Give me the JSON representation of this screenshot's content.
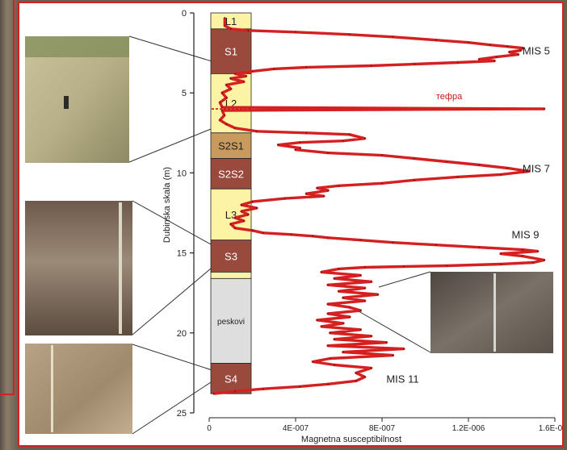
{
  "chart_data": {
    "type": "line",
    "ylabel": "Dubinska skala (m)",
    "xlabel": "Magnetna susceptibilnost",
    "ylim": [
      0,
      25
    ],
    "xlim": [
      0,
      1.6e-06
    ],
    "y_ticks": [
      "0",
      "5",
      "10",
      "15",
      "20",
      "25"
    ],
    "x_ticks": [
      "0",
      "4E-007",
      "8E-007",
      "1.2E-006",
      "1.6E-006"
    ],
    "stratigraphy": [
      {
        "label": "L1",
        "top": 0,
        "bottom": 1.0,
        "color": "#fdf3a4",
        "text_color": "#222222"
      },
      {
        "label": "S1",
        "top": 1.0,
        "bottom": 3.8,
        "color": "#9a4a3c",
        "text_color": "#ffffff"
      },
      {
        "label": "L2",
        "top": 3.8,
        "bottom": 7.5,
        "color": "#fdf3a4",
        "text_color": "#222222"
      },
      {
        "label": "S2S1",
        "top": 7.5,
        "bottom": 9.1,
        "color": "#c89a5e",
        "text_color": "#222222"
      },
      {
        "label": "S2S2",
        "top": 9.1,
        "bottom": 11.0,
        "color": "#9a4a3c",
        "text_color": "#ffffff"
      },
      {
        "label": "L3",
        "top": 11.0,
        "bottom": 14.2,
        "color": "#fdf3a4",
        "text_color": "#222222"
      },
      {
        "label": "S3",
        "top": 14.2,
        "bottom": 16.2,
        "color": "#9a4a3c",
        "text_color": "#ffffff"
      },
      {
        "label": "",
        "top": 16.2,
        "bottom": 16.6,
        "color": "#fdf3a4",
        "text_color": "#222222"
      },
      {
        "label": "peskovi",
        "top": 16.6,
        "bottom": 21.9,
        "color": "#dedede",
        "text_color": "#222222"
      },
      {
        "label": "S4",
        "top": 21.9,
        "bottom": 23.8,
        "color": "#9a4a3c",
        "text_color": "#ffffff"
      }
    ],
    "tephra_depth": 6.0,
    "series": [
      {
        "color": "#d42020",
        "points": [
          [
            7.2e-08,
            0.3
          ],
          [
            7.2e-08,
            0.8
          ],
          [
            1e-07,
            1.0
          ],
          [
            1.8e-07,
            1.1
          ],
          [
            4e-07,
            1.2
          ],
          [
            6.5e-07,
            1.35
          ],
          [
            8.5e-07,
            1.5
          ],
          [
            1.05e-06,
            1.7
          ],
          [
            1.2e-06,
            1.85
          ],
          [
            1.3e-06,
            2.0
          ],
          [
            1.38e-06,
            2.1
          ],
          [
            1.45e-06,
            2.2
          ],
          [
            1.44e-06,
            2.35
          ],
          [
            1.39e-06,
            2.45
          ],
          [
            1.43e-06,
            2.6
          ],
          [
            1.33e-06,
            2.75
          ],
          [
            1.25e-06,
            2.9
          ],
          [
            1.32e-06,
            3.0
          ],
          [
            1.15e-06,
            3.1
          ],
          [
            9.5e-07,
            3.2
          ],
          [
            7.5e-07,
            3.3
          ],
          [
            4.5e-07,
            3.4
          ],
          [
            3e-07,
            3.5
          ],
          [
            2e-07,
            3.65
          ],
          [
            1.2e-07,
            3.8
          ],
          [
            1.7e-07,
            3.95
          ],
          [
            1e-07,
            4.1
          ],
          [
            1.6e-07,
            4.3
          ],
          [
            8e-08,
            4.5
          ],
          [
            1e-07,
            4.75
          ],
          [
            6e-08,
            5.0
          ],
          [
            8e-08,
            5.3
          ],
          [
            5e-08,
            5.6
          ],
          [
            6e-08,
            5.9
          ],
          [
            1.55e-06,
            6.0
          ],
          [
            6e-08,
            6.1
          ],
          [
            7e-08,
            6.4
          ],
          [
            5e-08,
            6.7
          ],
          [
            8e-08,
            6.95
          ],
          [
            1.2e-07,
            7.2
          ],
          [
            2.2e-07,
            7.4
          ],
          [
            4.5e-07,
            7.5
          ],
          [
            6.5e-07,
            7.6
          ],
          [
            7.2e-07,
            7.85
          ],
          [
            6.2e-07,
            8.0
          ],
          [
            4.2e-07,
            8.1
          ],
          [
            3.2e-07,
            8.25
          ],
          [
            4.2e-07,
            8.45
          ],
          [
            4e-07,
            8.55
          ],
          [
            5.5e-07,
            8.75
          ],
          [
            8e-07,
            8.9
          ],
          [
            9.5e-07,
            9.1
          ],
          [
            1.1e-06,
            9.3
          ],
          [
            1.25e-06,
            9.5
          ],
          [
            1.38e-06,
            9.7
          ],
          [
            1.48e-06,
            9.9
          ],
          [
            1.35e-06,
            10.1
          ],
          [
            1.15e-06,
            10.25
          ],
          [
            9.5e-07,
            10.45
          ],
          [
            8e-07,
            10.65
          ],
          [
            6e-07,
            10.8
          ],
          [
            5e-07,
            10.95
          ],
          [
            5.5e-07,
            11.1
          ],
          [
            4.5e-07,
            11.3
          ],
          [
            5.3e-07,
            11.45
          ],
          [
            3.5e-07,
            11.6
          ],
          [
            2e-07,
            11.8
          ],
          [
            1.5e-07,
            12.0
          ],
          [
            2.2e-07,
            12.2
          ],
          [
            1.5e-07,
            12.4
          ],
          [
            1.8e-07,
            12.6
          ],
          [
            1.2e-07,
            12.8
          ],
          [
            1.6e-07,
            13.0
          ],
          [
            1e-07,
            13.2
          ],
          [
            1.2e-07,
            13.45
          ],
          [
            2e-07,
            13.6
          ],
          [
            2.5e-07,
            13.75
          ],
          [
            3.8e-07,
            13.85
          ],
          [
            4.8e-07,
            13.95
          ],
          [
            5.5e-07,
            14.05
          ],
          [
            7e-07,
            14.2
          ],
          [
            8.5e-07,
            14.35
          ],
          [
            1.05e-06,
            14.5
          ],
          [
            1.25e-06,
            14.65
          ],
          [
            1.45e-06,
            14.8
          ],
          [
            1.52e-06,
            14.9
          ],
          [
            1.35e-06,
            15.05
          ],
          [
            1.45e-06,
            15.2
          ],
          [
            1.55e-06,
            15.45
          ],
          [
            1.5e-06,
            15.6
          ],
          [
            1.35e-06,
            15.7
          ],
          [
            1.1e-06,
            15.8
          ],
          [
            9e-07,
            15.85
          ],
          [
            7.2e-07,
            15.9
          ],
          [
            6e-07,
            16.0
          ],
          [
            5.2e-07,
            16.2
          ],
          [
            7e-07,
            16.4
          ],
          [
            5.8e-07,
            16.6
          ],
          [
            7.5e-07,
            16.8
          ],
          [
            5.5e-07,
            17.0
          ],
          [
            7.2e-07,
            17.2
          ],
          [
            6e-07,
            17.4
          ],
          [
            7.8e-07,
            17.6
          ],
          [
            6.2e-07,
            17.8
          ],
          [
            7.2e-07,
            18.0
          ],
          [
            5.5e-07,
            18.2
          ],
          [
            6.5e-07,
            18.4
          ],
          [
            7e-07,
            18.6
          ],
          [
            5.5e-07,
            18.8
          ],
          [
            6.5e-07,
            19.0
          ],
          [
            5e-07,
            19.2
          ],
          [
            6.2e-07,
            19.4
          ],
          [
            5.2e-07,
            19.6
          ],
          [
            7e-07,
            19.8
          ],
          [
            5.6e-07,
            20.0
          ],
          [
            7.5e-07,
            20.2
          ],
          [
            5.8e-07,
            20.4
          ],
          [
            8.2e-07,
            20.6
          ],
          [
            5.5e-07,
            20.8
          ],
          [
            9e-07,
            21.0
          ],
          [
            6.2e-07,
            21.2
          ],
          [
            8.5e-07,
            21.4
          ],
          [
            5.6e-07,
            21.6
          ],
          [
            4.8e-07,
            21.8
          ],
          [
            5.8e-07,
            22.0
          ],
          [
            7.5e-07,
            22.2
          ],
          [
            6.8e-07,
            22.5
          ],
          [
            7.2e-07,
            22.75
          ],
          [
            6.8e-07,
            23.0
          ],
          [
            5.5e-07,
            23.2
          ],
          [
            4.2e-07,
            23.35
          ],
          [
            2.5e-07,
            23.5
          ],
          [
            1.2e-07,
            23.65
          ],
          [
            2e-08,
            23.8
          ]
        ]
      }
    ],
    "annotations": [
      {
        "text": "MIS 5",
        "x": 1.45e-06,
        "y": 2.6
      },
      {
        "text": "тефра",
        "x": 1.05e-06,
        "y": 5.4
      },
      {
        "text": "MIS 7",
        "x": 1.45e-06,
        "y": 9.95
      },
      {
        "text": "MIS 9",
        "x": 1.4e-06,
        "y": 14.1
      },
      {
        "text": "MIS 11",
        "x": 8.2e-07,
        "y": 23.1
      }
    ]
  },
  "photos": [
    {
      "name": "photo-loess-outcrop",
      "colors": [
        "#c9c29a",
        "#a8a07a",
        "#7c7a55"
      ]
    },
    {
      "name": "photo-paleosol-section",
      "colors": [
        "#7a6656",
        "#a0907e",
        "#5b4c40"
      ]
    },
    {
      "name": "photo-s4-section",
      "colors": [
        "#b09a80",
        "#9c8468",
        "#c4ae92"
      ]
    },
    {
      "name": "photo-sand-layer",
      "colors": [
        "#5e564e",
        "#7a7168",
        "#4a433c"
      ]
    }
  ]
}
